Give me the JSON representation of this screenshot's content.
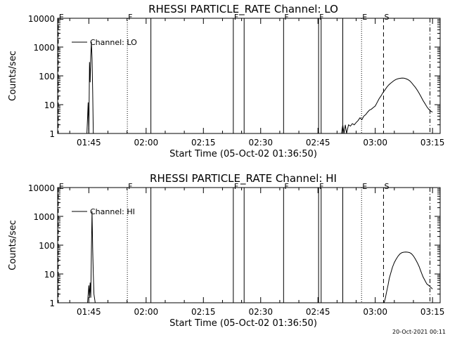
{
  "footer": {
    "timestamp": "20-Oct-2021 00:11"
  },
  "chart_data": [
    {
      "type": "line",
      "title": "RHESSI PARTICLE_RATE Channel: LO",
      "xlabel": "Start Time (05-Oct-02 01:36:50)",
      "ylabel": "Counts/sec",
      "y_scale": "log",
      "xlim": [
        "01:36:50",
        "03:17:00"
      ],
      "ylim": [
        1,
        10000
      ],
      "x_ticks": [
        "01:45",
        "02:00",
        "02:15",
        "02:30",
        "02:45",
        "03:00",
        "03:15"
      ],
      "y_ticks": [
        "1",
        "10",
        "100",
        "1000",
        "10000"
      ],
      "grid": false,
      "legend_position": "top-left",
      "series": [
        {
          "name": "Channel: LO",
          "x": [
            "01:44:30",
            "01:44:50",
            "01:45:00",
            "01:45:10",
            "01:45:20",
            "01:45:30",
            "01:45:40",
            "01:45:50",
            "01:46:00",
            "01:46:10",
            "02:51:10",
            "02:51:30",
            "02:51:50",
            "02:52:10",
            "02:52:30",
            "02:53:00",
            "02:53:30",
            "02:54:00",
            "02:54:30",
            "02:55:00",
            "02:55:30",
            "02:56:00",
            "02:56:30",
            "02:57:00",
            "02:57:30",
            "02:58:00",
            "02:58:30",
            "02:59:00",
            "02:59:30",
            "03:00:00",
            "03:00:30",
            "03:01:00",
            "03:01:30",
            "03:02:00",
            "03:02:30",
            "03:03:00",
            "03:03:30",
            "03:04:00",
            "03:04:30",
            "03:05:00",
            "03:05:30",
            "03:06:00",
            "03:06:30",
            "03:07:00",
            "03:07:30",
            "03:08:00",
            "03:08:30",
            "03:09:00",
            "03:09:30",
            "03:10:00",
            "03:10:30",
            "03:11:00",
            "03:11:30",
            "03:12:00",
            "03:12:30",
            "03:13:00",
            "03:13:30",
            "03:14:00",
            "03:14:30",
            "03:15:00"
          ],
          "values": [
            1,
            12,
            1,
            300,
            60,
            500,
            1500,
            400,
            30,
            1,
            1,
            2,
            1,
            2,
            1,
            2,
            1.8,
            2.2,
            2,
            2.4,
            2.8,
            3.5,
            3,
            4,
            4.5,
            5.5,
            6.5,
            7,
            8,
            9,
            12,
            16,
            20,
            26,
            32,
            40,
            48,
            55,
            62,
            70,
            76,
            80,
            82,
            84,
            83,
            80,
            75,
            68,
            58,
            48,
            40,
            32,
            25,
            19,
            14,
            11,
            8.5,
            7,
            6,
            5.5
          ]
        }
      ],
      "flags": [
        {
          "label": "E",
          "time": "01:37:00",
          "style": "dashed"
        },
        {
          "label": "F",
          "time": "01:55:05",
          "style": "dotted"
        },
        {
          "label": "F",
          "time": "02:22:50",
          "style": "solid"
        },
        {
          "label": "F",
          "time": "02:36:00",
          "style": "solid"
        },
        {
          "label": "F",
          "time": "02:45:10",
          "style": "solid"
        },
        {
          "label": "E",
          "time": "02:56:25",
          "style": "dotted"
        },
        {
          "label": "S",
          "time": "03:02:10",
          "style": "dashed"
        }
      ],
      "unlabeled_lines": [
        {
          "time": "02:01:15",
          "style": "solid"
        },
        {
          "time": "02:25:40",
          "style": "solid"
        },
        {
          "time": "02:45:50",
          "style": "solid"
        },
        {
          "time": "02:51:30",
          "style": "solid"
        },
        {
          "time": "03:14:20",
          "style": "dashdot"
        }
      ]
    },
    {
      "type": "line",
      "title": "RHESSI PARTICLE_RATE Channel: HI",
      "xlabel": "Start Time (05-Oct-02 01:36:50)",
      "ylabel": "Counts/sec",
      "y_scale": "log",
      "xlim": [
        "01:36:50",
        "03:17:00"
      ],
      "ylim": [
        1,
        10000
      ],
      "x_ticks": [
        "01:45",
        "02:00",
        "02:15",
        "02:30",
        "02:45",
        "03:00",
        "03:15"
      ],
      "y_ticks": [
        "1",
        "10",
        "100",
        "1000",
        "10000"
      ],
      "grid": false,
      "legend_position": "top-left",
      "series": [
        {
          "name": "Channel: HI",
          "x": [
            "01:44:40",
            "01:45:00",
            "01:45:10",
            "01:45:20",
            "01:45:30",
            "01:45:40",
            "01:45:50",
            "01:46:00",
            "01:46:10",
            "01:46:20",
            "01:46:40",
            "03:02:20",
            "03:02:40",
            "03:03:00",
            "03:03:20",
            "03:03:40",
            "03:04:00",
            "03:04:30",
            "03:05:00",
            "03:05:30",
            "03:06:00",
            "03:06:30",
            "03:07:00",
            "03:07:30",
            "03:08:00",
            "03:08:30",
            "03:09:00",
            "03:09:30",
            "03:10:00",
            "03:10:30",
            "03:11:00",
            "03:11:30",
            "03:12:00",
            "03:12:30",
            "03:13:00",
            "03:13:30",
            "03:14:00",
            "03:14:30",
            "03:15:00"
          ],
          "values": [
            1,
            4,
            1.5,
            5,
            1.5,
            60,
            1500,
            80,
            10,
            2,
            1,
            1,
            1.5,
            2.5,
            4,
            7,
            10,
            17,
            25,
            33,
            42,
            50,
            55,
            57,
            58,
            57,
            55,
            50,
            42,
            33,
            25,
            18,
            12,
            8,
            6,
            4.5,
            4,
            3.5,
            3
          ]
        }
      ],
      "flags": [
        {
          "label": "E",
          "time": "01:37:00",
          "style": "dashed"
        },
        {
          "label": "F",
          "time": "01:55:05",
          "style": "dotted"
        },
        {
          "label": "F",
          "time": "02:22:50",
          "style": "solid"
        },
        {
          "label": "F",
          "time": "02:36:00",
          "style": "solid"
        },
        {
          "label": "F",
          "time": "02:45:10",
          "style": "solid"
        },
        {
          "label": "E",
          "time": "02:56:25",
          "style": "dotted"
        },
        {
          "label": "S",
          "time": "03:02:10",
          "style": "dashed"
        }
      ],
      "unlabeled_lines": [
        {
          "time": "02:01:15",
          "style": "solid"
        },
        {
          "time": "02:25:40",
          "style": "solid"
        },
        {
          "time": "02:45:50",
          "style": "solid"
        },
        {
          "time": "02:51:30",
          "style": "solid"
        },
        {
          "time": "03:14:20",
          "style": "dashdot"
        }
      ]
    }
  ]
}
